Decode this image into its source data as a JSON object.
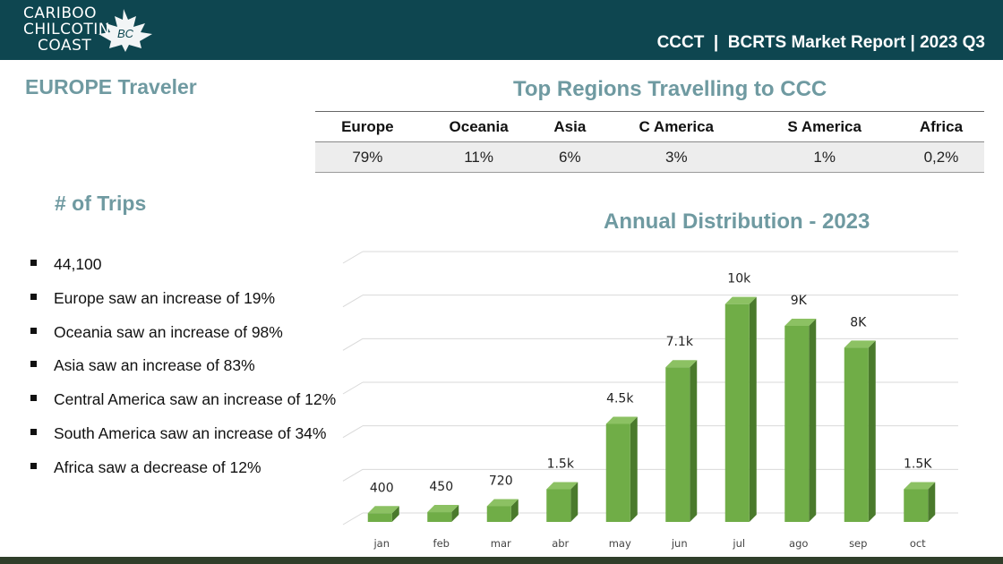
{
  "header": {
    "logo_lines": [
      "CARIBOO",
      "CHILCOTIN",
      "COAST"
    ],
    "logo_badge": "BC",
    "title": "CCCT  |  BCRTS Market Report | 2023 Q3"
  },
  "page_title": "EUROPE Traveler",
  "regions": {
    "title": "Top Regions Travelling to CCC",
    "columns": [
      "Europe",
      "Oceania",
      "Asia",
      "C America",
      "S America",
      "Africa"
    ],
    "values": [
      "79%",
      "11%",
      "6%",
      "3%",
      "1%",
      "0,2%"
    ]
  },
  "trips": {
    "title": "# of Trips",
    "items": [
      "44,100",
      "Europe saw an increase of 19%",
      "Oceania saw an increase of 98%",
      "Asia saw an increase of 83%",
      "Central America saw an increase of 12%",
      "South America saw an increase of 34%",
      "Africa saw a decrease of 12%"
    ]
  },
  "colors": {
    "header_bg": "#0e4650",
    "heading_teal": "#6f9aa1",
    "bar_front": "#70ad47",
    "bar_side": "#4a7a2c",
    "bar_top": "#8cc163"
  },
  "chart_data": {
    "type": "bar",
    "title": "Annual Distribution - 2023",
    "categories": [
      "jan",
      "feb",
      "mar",
      "abr",
      "may",
      "jun",
      "jul",
      "ago",
      "sep",
      "oct"
    ],
    "values": [
      400,
      450,
      720,
      1500,
      4500,
      7100,
      10000,
      9000,
      8000,
      1500
    ],
    "data_labels": [
      "400",
      "450",
      "720",
      "1.5k",
      "4.5k",
      "7.1k",
      "10k",
      "9K",
      "8K",
      "1.5K"
    ],
    "ylim": [
      0,
      12000
    ],
    "grid": true,
    "xlabel": "",
    "ylabel": ""
  }
}
